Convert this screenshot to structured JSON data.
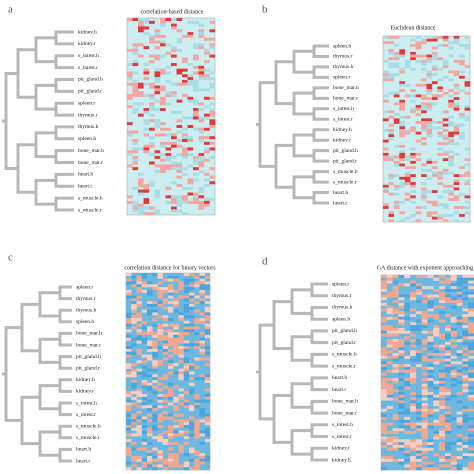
{
  "panels": [
    {
      "label": "a",
      "title": "correlation-based distance",
      "leaves": [
        "kidney.h",
        "kidney.r",
        "s_intest.h",
        "s_intest.r",
        "pit_gland.h",
        "pit_gland.r",
        "spleen.r",
        "thymus.r",
        "thymus.h",
        "spleen.h",
        "bone_mar.h",
        "bone_mar.r",
        "heart.h",
        "heart.r",
        "s_muscle.h",
        "s_muscle.r"
      ]
    },
    {
      "label": "b",
      "title": "Euclidean distance",
      "leaves": [
        "spleen.h",
        "thymus.r",
        "thymus.h",
        "spleen.r",
        "bone_mar.h",
        "bone_mar.r",
        "s_intest.h",
        "s_intest.r",
        "kidney.h",
        "kidney.r",
        "pit_gland.h",
        "pit_gland.r",
        "s_muscle.h",
        "s_muscle.r",
        "heart.h",
        "heart.r"
      ]
    },
    {
      "label": "c",
      "title": "correlation distance for binary vectors",
      "leaves": [
        "spleen.r",
        "thymus.r",
        "thymus.h",
        "spleen.h",
        "bone_mar.h",
        "bone_mar.r",
        "pit_gland.h",
        "pit_gland.r",
        "kidney.h",
        "kidney.r",
        "s_intest.h",
        "s_intest.r",
        "s_muscle.h",
        "s_muscle.r",
        "heart.h",
        "heart.r"
      ]
    },
    {
      "label": "d",
      "title": "GA distance with exponent approaching in",
      "leaves": [
        "spleen.r",
        "thymus.r",
        "thymus.h",
        "spleen.h",
        "pit_gland.h",
        "pit_gland.r",
        "s_muscle.h",
        "s_muscle.r",
        "heart.h",
        "heart.r",
        "bone_mar.h",
        "bone_mar.r",
        "s_intest.h",
        "s_intest.r",
        "kidney.r",
        "kidney.h"
      ]
    }
  ]
}
